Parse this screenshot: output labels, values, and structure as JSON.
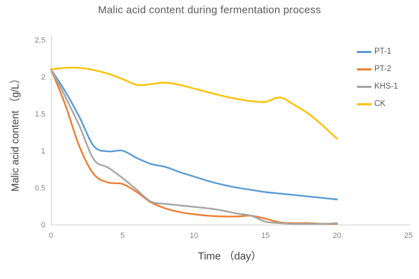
{
  "chart_data": {
    "type": "line",
    "title": "Malic acid content during fermentation process",
    "xlabel": "Time （day）",
    "ylabel": "Malic acid content （g/L）",
    "xlim": [
      0,
      25
    ],
    "ylim": [
      0,
      2.5
    ],
    "x_ticks": [
      "0",
      "5",
      "10",
      "15",
      "20",
      "25"
    ],
    "y_ticks": [
      "0",
      "0.5",
      "1",
      "1.5",
      "2",
      "2.5"
    ],
    "grid": false,
    "legend_position": "top-right",
    "background": "#ffffff",
    "axis_color": "#d2d2d2",
    "tick_label_color": "#858585",
    "text_color": "#595959",
    "x": [
      0,
      1,
      2,
      3,
      4,
      5,
      6,
      7,
      8,
      9,
      10,
      11,
      12,
      13,
      14,
      15,
      16,
      17,
      18,
      19,
      20
    ],
    "series": [
      {
        "name": "PT-1",
        "color": "#5B9BD5",
        "values": [
          2.1,
          1.8,
          1.45,
          1.06,
          0.99,
          1.0,
          0.9,
          0.82,
          0.78,
          0.71,
          0.65,
          0.59,
          0.54,
          0.5,
          0.47,
          0.44,
          0.42,
          0.4,
          0.38,
          0.36,
          0.34
        ]
      },
      {
        "name": "PT-2",
        "color": "#ED7D31",
        "values": [
          2.1,
          1.62,
          1.05,
          0.68,
          0.57,
          0.55,
          0.44,
          0.3,
          0.22,
          0.17,
          0.14,
          0.12,
          0.11,
          0.11,
          0.12,
          0.08,
          0.03,
          0.02,
          0.02,
          0.01,
          0.01
        ]
      },
      {
        "name": "KHS-1",
        "color": "#A5A5A5",
        "values": [
          2.1,
          1.73,
          1.33,
          0.88,
          0.77,
          0.63,
          0.47,
          0.31,
          0.28,
          0.26,
          0.24,
          0.22,
          0.19,
          0.15,
          0.12,
          0.04,
          0.02,
          0.01,
          0.01,
          0.01,
          0.02
        ]
      },
      {
        "name": "CK",
        "color": "#FFC000",
        "values": [
          2.1,
          2.12,
          2.12,
          2.09,
          2.04,
          1.97,
          1.89,
          1.9,
          1.92,
          1.89,
          1.84,
          1.79,
          1.74,
          1.7,
          1.67,
          1.66,
          1.72,
          1.62,
          1.5,
          1.34,
          1.16
        ]
      }
    ]
  }
}
